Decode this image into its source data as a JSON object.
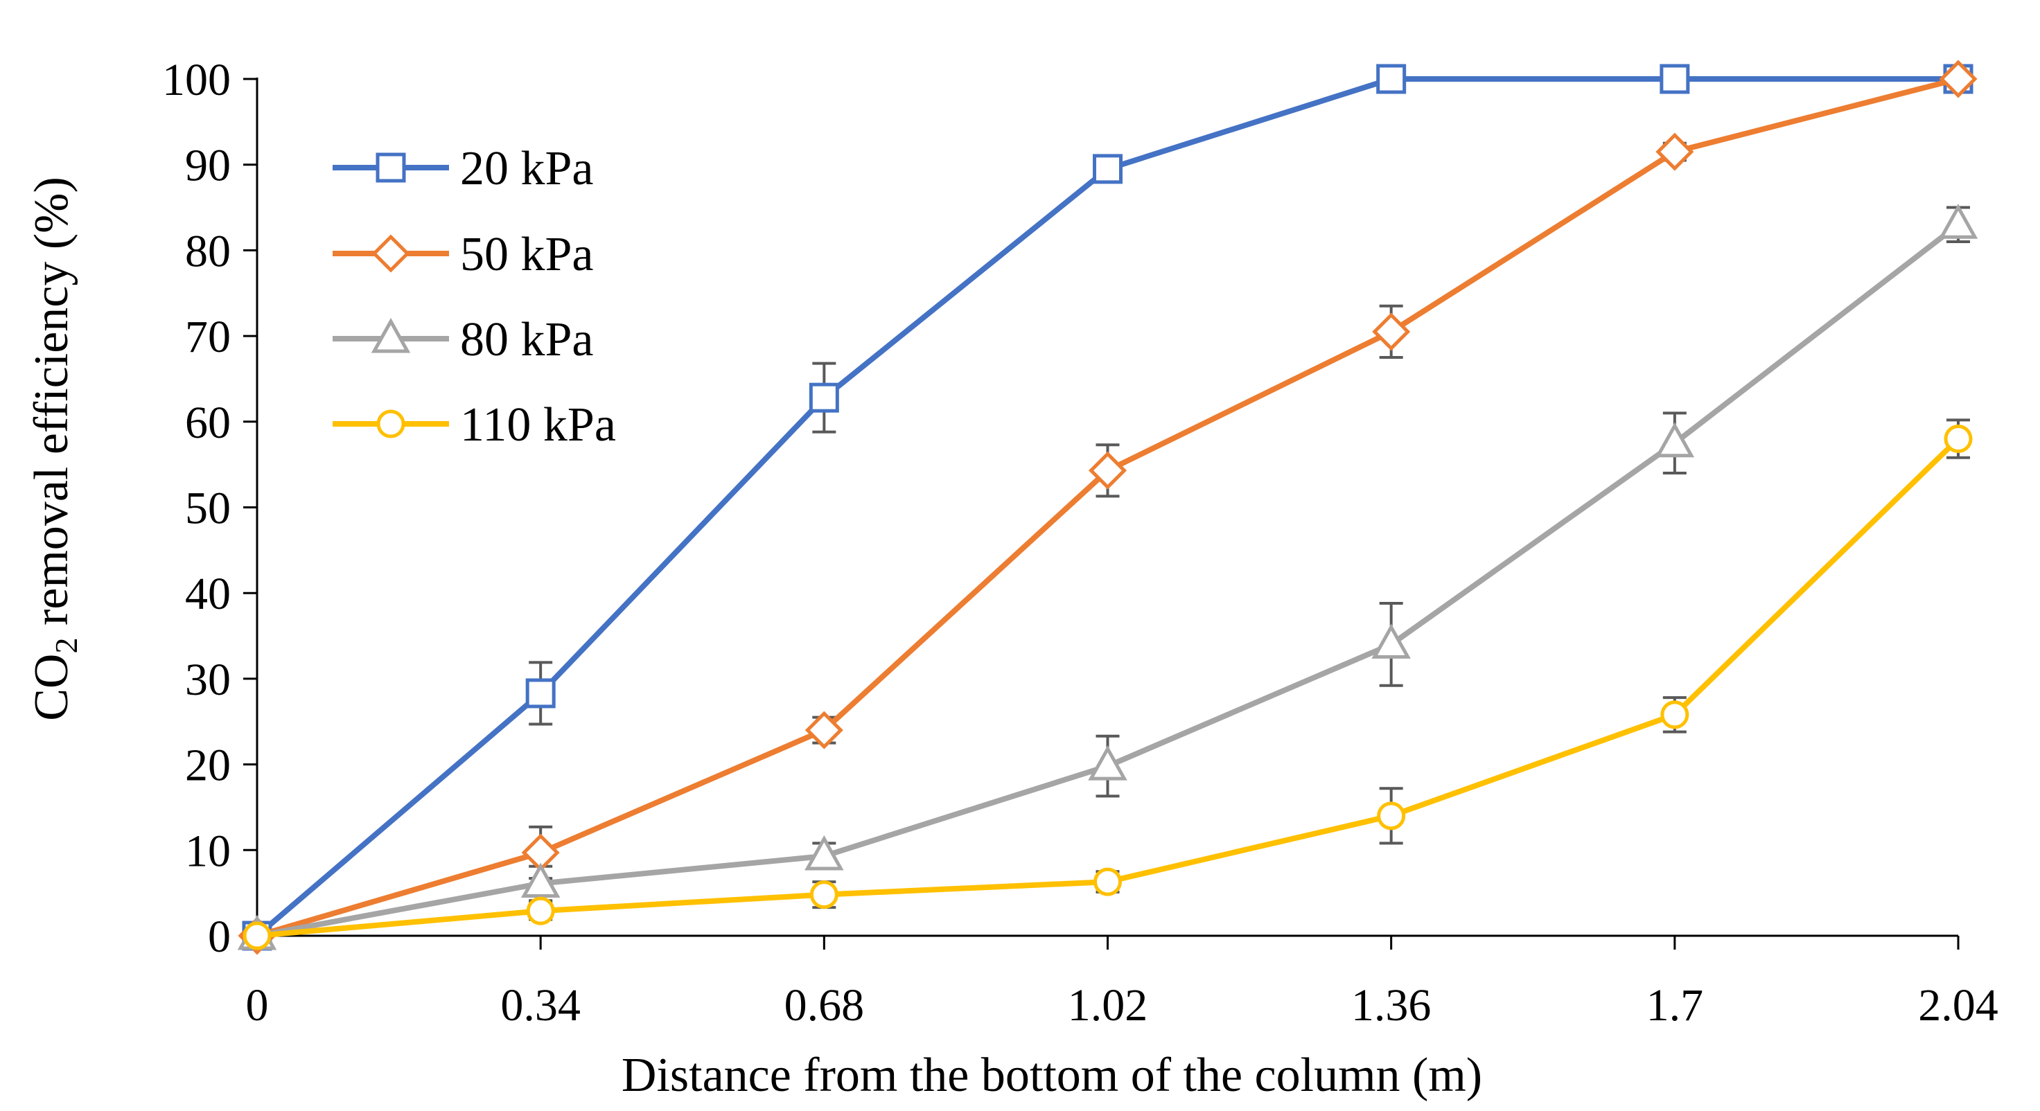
{
  "chart_data": {
    "type": "line",
    "title": "",
    "xlabel": "Distance from the bottom of the column (m)",
    "ylabel_main": "CO",
    "ylabel_sub": "2",
    "ylabel_rest": " removal efficiency (%)",
    "x_ticks": [
      "0",
      "0.34",
      "0.68",
      "1.02",
      "1.36",
      "1.7",
      "2.04"
    ],
    "y_ticks": [
      "0",
      "10",
      "20",
      "30",
      "40",
      "50",
      "60",
      "70",
      "80",
      "90",
      "100"
    ],
    "ylim": [
      0,
      100
    ],
    "legend_position": "top-left",
    "error_bar_color": "#595959",
    "series": [
      {
        "name": "20 kPa",
        "color": "#4472C4",
        "marker": "square",
        "values": [
          0,
          28.3,
          62.8,
          89.5,
          100,
          100,
          100
        ],
        "errors": [
          0,
          3.6,
          4.0,
          1.2,
          0,
          0,
          0
        ]
      },
      {
        "name": "50 kPa",
        "color": "#ED7D31",
        "marker": "diamond",
        "values": [
          0,
          9.7,
          24,
          54.3,
          70.5,
          91.5,
          100
        ],
        "errors": [
          0,
          3.0,
          1.5,
          3.0,
          3.0,
          1.0,
          0
        ]
      },
      {
        "name": "80 kPa",
        "color": "#A5A5A5",
        "marker": "triangle",
        "values": [
          0,
          6.1,
          9.3,
          19.8,
          34,
          57.5,
          83
        ],
        "errors": [
          0,
          2.0,
          1.5,
          3.5,
          4.8,
          3.5,
          2.0
        ]
      },
      {
        "name": "110 kPa",
        "color": "#FFC000",
        "marker": "circle",
        "values": [
          0,
          2.9,
          4.8,
          6.3,
          14,
          25.8,
          58
        ],
        "errors": [
          0,
          1.0,
          1.5,
          1.2,
          3.2,
          2.0,
          2.2
        ]
      }
    ]
  }
}
